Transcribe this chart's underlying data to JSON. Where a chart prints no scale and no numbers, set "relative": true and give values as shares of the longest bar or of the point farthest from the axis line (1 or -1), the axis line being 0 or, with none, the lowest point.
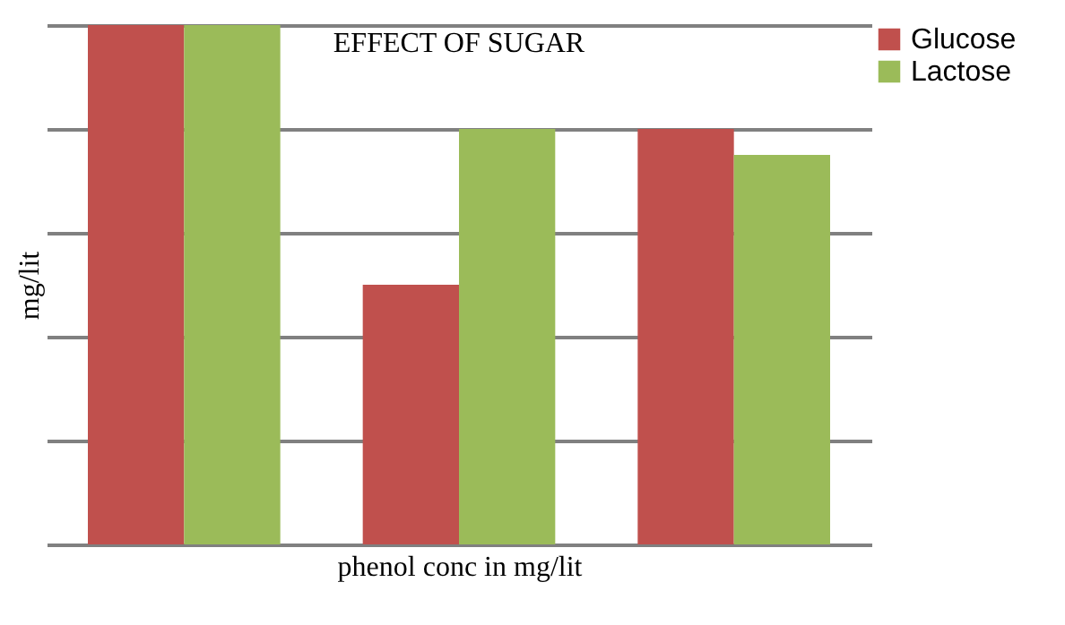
{
  "chart_data": {
    "type": "bar",
    "title": "EFFECT OF SUGAR",
    "xlabel": "phenol conc in mg/lit",
    "ylabel": "mg/lit",
    "relative": true,
    "grid": "y",
    "legend": "top right",
    "categories": [
      null,
      null,
      null
    ],
    "series": [
      {
        "name": "Glucose",
        "color": "#c0504d",
        "values": [
          1,
          0.5,
          0.8
        ]
      },
      {
        "name": "Lactose",
        "color": "#9bbb59",
        "values": [
          1,
          0.8,
          0.75
        ]
      }
    ]
  }
}
